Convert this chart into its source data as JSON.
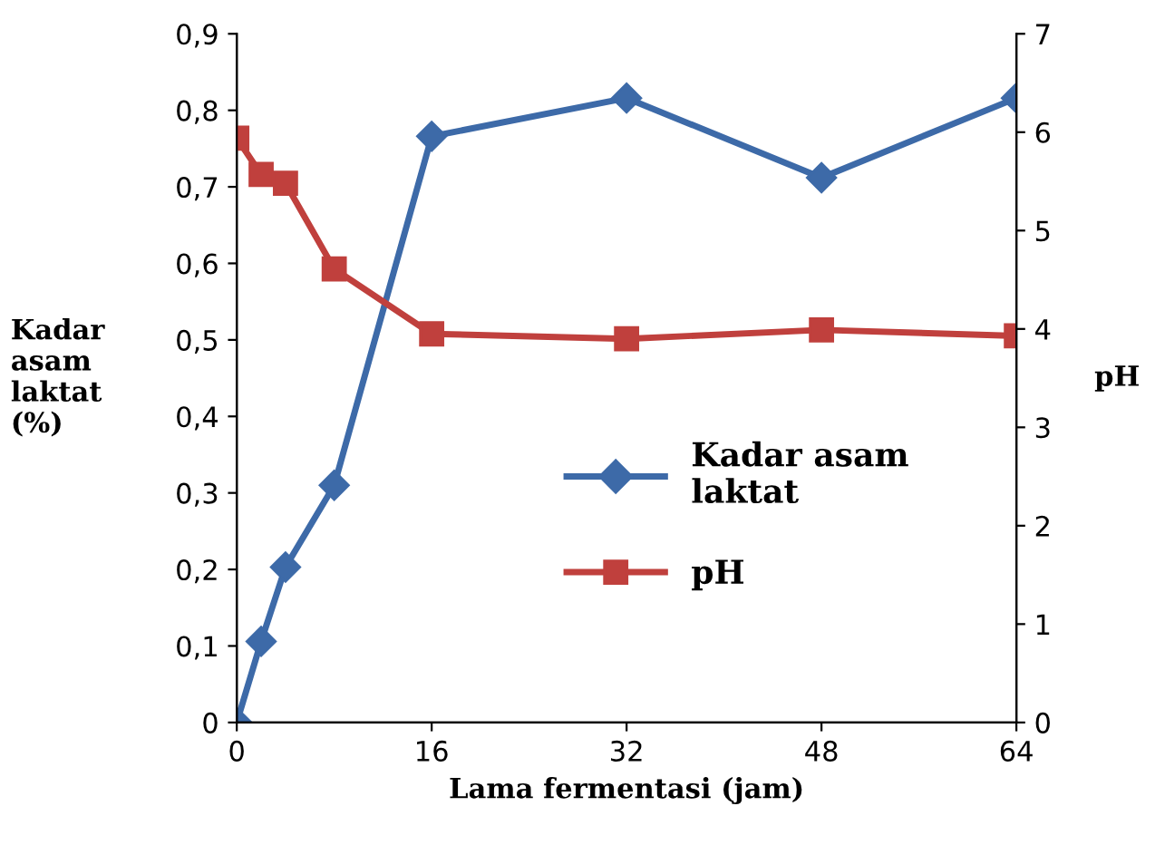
{
  "chart_data": {
    "type": "line",
    "xlabel": "Lama fermentasi (jam)",
    "ylabel": "Kadar\nasam\nlaktat\n(%)",
    "y2label": "pH",
    "x": [
      0,
      2,
      4,
      8,
      16,
      32,
      48,
      64
    ],
    "series": [
      {
        "name": "Kadar asam\nlaktat",
        "color": "#3d6aa8",
        "marker": "diamond",
        "values": [
          0,
          0.106,
          0.203,
          0.31,
          0.766,
          0.816,
          0.712,
          0.816
        ]
      },
      {
        "name": "pH",
        "color": "#c0403d",
        "marker": "square",
        "axis": "y2",
        "values": [
          5.94,
          5.57,
          5.48,
          4.61,
          3.95,
          3.9,
          3.99,
          3.93
        ]
      }
    ],
    "xlim": [
      0,
      64
    ],
    "xticks": [
      0,
      16,
      32,
      48,
      64
    ],
    "ylim": [
      0,
      0.9
    ],
    "yticks": [
      0,
      {
        "value": 0.1,
        "label": "0,1"
      },
      {
        "value": 0.2,
        "label": "0,2"
      },
      {
        "value": 0.3,
        "label": "0,3"
      },
      {
        "value": 0.4,
        "label": "0,4"
      },
      {
        "value": 0.5,
        "label": "0,5"
      },
      {
        "value": 0.6,
        "label": "0,6"
      },
      {
        "value": 0.7,
        "label": "0,7"
      },
      {
        "value": 0.8,
        "label": "0,8"
      },
      {
        "value": 0.9,
        "label": "0,9"
      }
    ],
    "y2lim": [
      0,
      7
    ],
    "y2ticks": [
      0,
      1,
      2,
      3,
      4,
      5,
      6,
      7
    ],
    "grid": false,
    "legend": "right",
    "line_style": "solid"
  }
}
